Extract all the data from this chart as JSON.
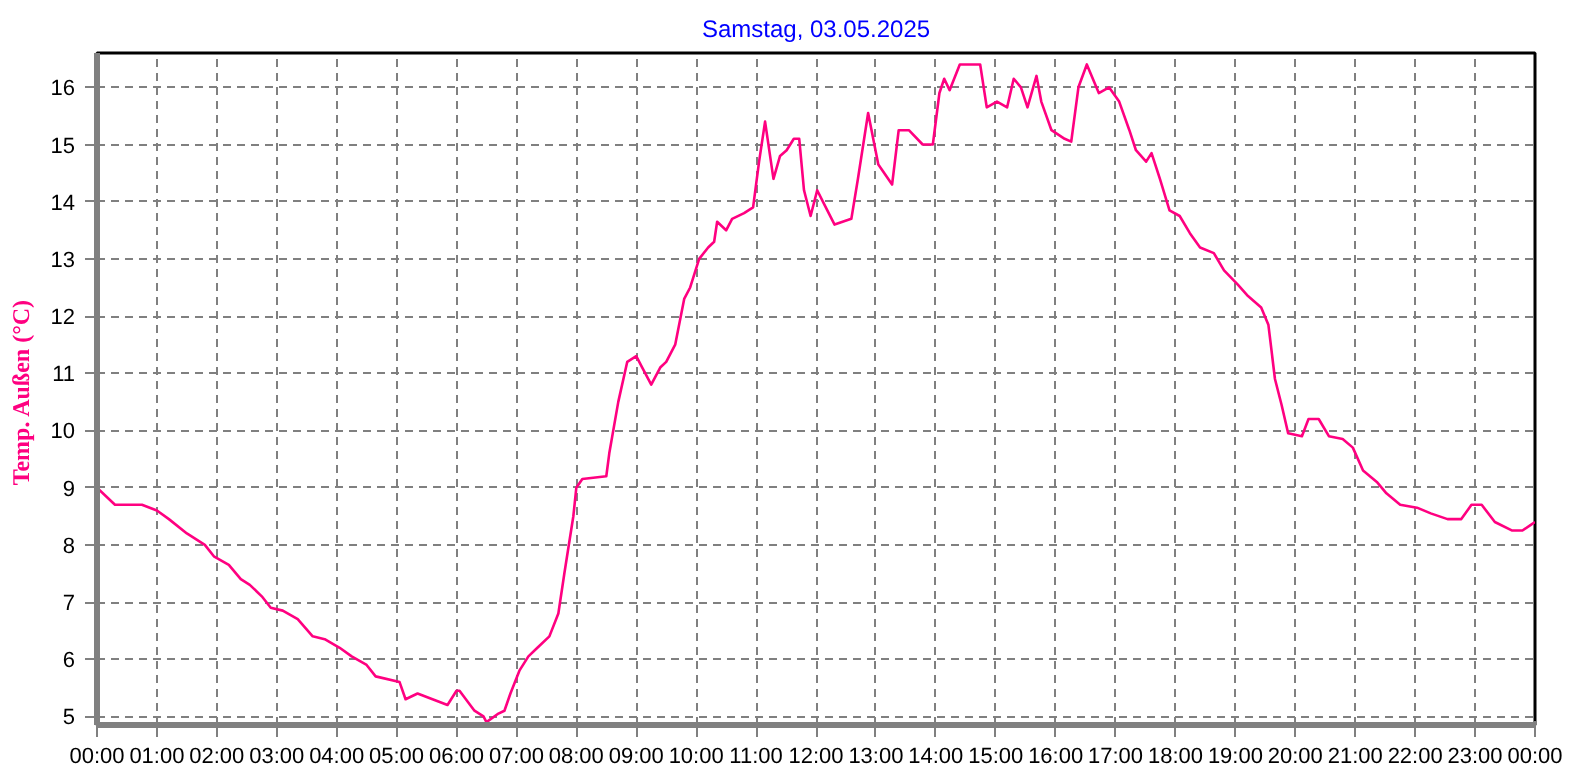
{
  "chart_data": {
    "type": "line",
    "title": "Samstag, 03.05.2025",
    "ylabel": "Temp. Außen  (°C)",
    "x": [
      0,
      0.3,
      0.75,
      1.0,
      1.2,
      1.5,
      1.8,
      1.95,
      2.2,
      2.4,
      2.55,
      2.75,
      2.9,
      3.1,
      3.35,
      3.6,
      3.8,
      4.05,
      4.25,
      4.5,
      4.65,
      5.05,
      5.15,
      5.35,
      5.6,
      5.85,
      6.0,
      6.05,
      6.3,
      6.45,
      6.5,
      6.7,
      6.8,
      6.9,
      7.05,
      7.2,
      7.35,
      7.55,
      7.7,
      7.8,
      7.95,
      8.0,
      8.1,
      8.5,
      8.55,
      8.7,
      8.85,
      9.0,
      9.1,
      9.25,
      9.4,
      9.5,
      9.65,
      9.8,
      9.9,
      10.05,
      10.2,
      10.3,
      10.35,
      10.5,
      10.6,
      10.8,
      10.95,
      11.05,
      11.15,
      11.29,
      11.4,
      11.51,
      11.63,
      11.72,
      11.8,
      11.91,
      12.02,
      12.14,
      12.31,
      12.59,
      12.7,
      12.87,
      13.04,
      13.27,
      13.38,
      13.55,
      13.78,
      13.95,
      14.06,
      14.14,
      14.23,
      14.4,
      14.57,
      14.74,
      14.85,
      15.02,
      15.19,
      15.3,
      15.42,
      15.53,
      15.68,
      15.76,
      15.93,
      16.15,
      16.26,
      16.38,
      16.52,
      16.72,
      16.89,
      17.06,
      17.23,
      17.34,
      17.51,
      17.6,
      17.74,
      17.9,
      18.07,
      18.24,
      18.41,
      18.64,
      18.81,
      19.04,
      19.21,
      19.43,
      19.55,
      19.66,
      19.77,
      19.88,
      20.11,
      20.22,
      20.39,
      20.56,
      20.79,
      20.96,
      21.13,
      21.36,
      21.52,
      21.75,
      22.03,
      22.26,
      22.54,
      22.77,
      22.94,
      23.11,
      23.33,
      23.62,
      23.79,
      23.93,
      24.0
    ],
    "series": [
      {
        "color": "#ff0080",
        "values": [
          9.0,
          8.7,
          8.7,
          8.6,
          8.45,
          8.2,
          8.0,
          7.8,
          7.65,
          7.4,
          7.3,
          7.1,
          6.9,
          6.85,
          6.7,
          6.4,
          6.35,
          6.2,
          6.05,
          5.9,
          5.7,
          5.6,
          5.3,
          5.4,
          5.3,
          5.2,
          5.45,
          5.45,
          5.1,
          5.0,
          4.9,
          5.05,
          5.1,
          5.4,
          5.8,
          6.05,
          6.2,
          6.4,
          6.8,
          7.5,
          8.5,
          9.0,
          9.15,
          9.2,
          9.6,
          10.5,
          11.2,
          11.3,
          11.1,
          10.8,
          11.1,
          11.2,
          11.5,
          12.3,
          12.5,
          13.0,
          13.2,
          13.3,
          13.65,
          13.5,
          13.7,
          13.8,
          13.9,
          14.7,
          15.4,
          14.4,
          14.8,
          14.9,
          15.1,
          15.1,
          14.2,
          13.75,
          14.2,
          13.95,
          13.6,
          13.7,
          14.4,
          15.55,
          14.65,
          14.3,
          15.25,
          15.25,
          15.0,
          15.0,
          15.9,
          16.15,
          15.95,
          16.4,
          16.4,
          16.4,
          15.65,
          15.75,
          15.65,
          16.15,
          16.0,
          15.65,
          16.2,
          15.75,
          15.25,
          15.1,
          15.05,
          16.0,
          16.4,
          15.9,
          16.0,
          15.75,
          15.25,
          14.9,
          14.7,
          14.85,
          14.4,
          13.85,
          13.75,
          13.45,
          13.2,
          13.1,
          12.8,
          12.55,
          12.35,
          12.15,
          11.85,
          10.9,
          10.45,
          9.95,
          9.9,
          10.2,
          10.2,
          9.9,
          9.85,
          9.7,
          9.3,
          9.1,
          8.9,
          8.7,
          8.65,
          8.55,
          8.45,
          8.45,
          8.7,
          8.7,
          8.4,
          8.25,
          8.25,
          8.35,
          8.4
        ]
      }
    ],
    "xlim": [
      0,
      24
    ],
    "ylim": [
      4.85,
      16.6
    ],
    "xticks": [
      {
        "value": 0,
        "label": "00:00"
      },
      {
        "value": 1,
        "label": "01:00"
      },
      {
        "value": 2,
        "label": "02:00"
      },
      {
        "value": 3,
        "label": "03:00"
      },
      {
        "value": 4,
        "label": "04:00"
      },
      {
        "value": 5,
        "label": "05:00"
      },
      {
        "value": 6,
        "label": "06:00"
      },
      {
        "value": 7,
        "label": "07:00"
      },
      {
        "value": 8,
        "label": "08:00"
      },
      {
        "value": 9,
        "label": "09:00"
      },
      {
        "value": 10,
        "label": "10:00"
      },
      {
        "value": 11,
        "label": "11:00"
      },
      {
        "value": 12,
        "label": "12:00"
      },
      {
        "value": 13,
        "label": "13:00"
      },
      {
        "value": 14,
        "label": "14:00"
      },
      {
        "value": 15,
        "label": "15:00"
      },
      {
        "value": 16,
        "label": "16:00"
      },
      {
        "value": 17,
        "label": "17:00"
      },
      {
        "value": 18,
        "label": "18:00"
      },
      {
        "value": 19,
        "label": "19:00"
      },
      {
        "value": 20,
        "label": "20:00"
      },
      {
        "value": 21,
        "label": "21:00"
      },
      {
        "value": 22,
        "label": "22:00"
      },
      {
        "value": 23,
        "label": "23:00"
      },
      {
        "value": 24,
        "label": "00:00"
      }
    ],
    "yticks": [
      5,
      6,
      7,
      8,
      9,
      10,
      11,
      12,
      13,
      14,
      15,
      16
    ],
    "grid": true,
    "line_style": "solid"
  }
}
